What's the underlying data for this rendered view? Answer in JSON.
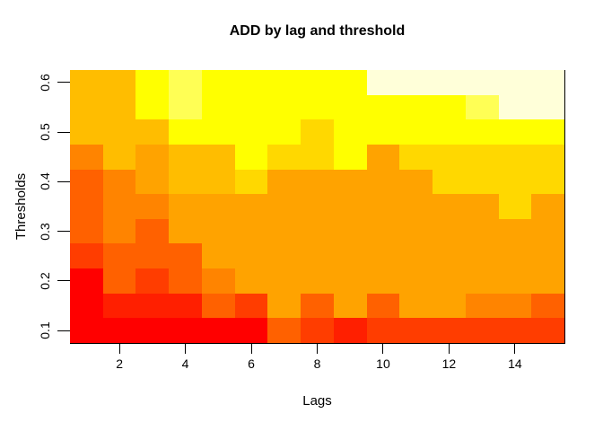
{
  "window": {
    "background": "#FFFFFF"
  },
  "chart_data": {
    "type": "heatmap",
    "title": "ADD by lag and threshold",
    "xlabel": "Lags",
    "ylabel": "Thresholds",
    "x_tick_values": [
      2,
      4,
      6,
      8,
      10,
      12,
      14
    ],
    "x_tick_labels": [
      "2",
      "4",
      "6",
      "8",
      "10",
      "12",
      "14"
    ],
    "y_tick_values": [
      0.1,
      0.2,
      0.3,
      0.4,
      0.5,
      0.6
    ],
    "y_tick_labels": [
      "0.1",
      "0.2",
      "0.3",
      "0.4",
      "0.5",
      "0.6"
    ],
    "x_domain": [
      0.5,
      15.5
    ],
    "y_domain": [
      0.075,
      0.625
    ],
    "lags": [
      1,
      2,
      3,
      4,
      5,
      6,
      7,
      8,
      9,
      10,
      11,
      12,
      13,
      14,
      15
    ],
    "thresholds_top_to_bottom": [
      0.6,
      0.55,
      0.5,
      0.45,
      0.4,
      0.35,
      0.3,
      0.25,
      0.2,
      0.15,
      0.1
    ],
    "grid_on": false,
    "legend": "none",
    "axis_color": "#000000",
    "border_sides": [
      "right",
      "bottom"
    ],
    "palette": {
      "c0": "#FF0000",
      "c1": "#FF1F00",
      "c2": "#FF3D00",
      "c3": "#FF6100",
      "c4": "#FF8400",
      "c5": "#FFA300",
      "c6": "#FFBD00",
      "c7": "#FFD800",
      "c9": "#FFFF00",
      "c10": "#FFFF55",
      "c12": "#FFFFD9"
    },
    "grid_rows_top_to_bottom": [
      [
        "c6",
        "c6",
        "c9",
        "c10",
        "c9",
        "c9",
        "c9",
        "c9",
        "c9",
        "c12",
        "c12",
        "c12",
        "c12",
        "c12",
        "c12"
      ],
      [
        "c6",
        "c6",
        "c9",
        "c10",
        "c9",
        "c9",
        "c9",
        "c9",
        "c9",
        "c9",
        "c9",
        "c9",
        "c10",
        "c12",
        "c12"
      ],
      [
        "c6",
        "c6",
        "c6",
        "c9",
        "c9",
        "c9",
        "c9",
        "c7",
        "c9",
        "c9",
        "c9",
        "c9",
        "c9",
        "c9",
        "c9"
      ],
      [
        "c4",
        "c6",
        "c5",
        "c6",
        "c6",
        "c9",
        "c7",
        "c7",
        "c9",
        "c5",
        "c7",
        "c7",
        "c7",
        "c7",
        "c7"
      ],
      [
        "c3",
        "c4",
        "c5",
        "c6",
        "c6",
        "c7",
        "c5",
        "c5",
        "c5",
        "c5",
        "c5",
        "c7",
        "c7",
        "c7",
        "c7"
      ],
      [
        "c3",
        "c4",
        "c4",
        "c5",
        "c5",
        "c5",
        "c5",
        "c5",
        "c5",
        "c5",
        "c5",
        "c5",
        "c5",
        "c7",
        "c5"
      ],
      [
        "c3",
        "c4",
        "c3",
        "c5",
        "c5",
        "c5",
        "c5",
        "c5",
        "c5",
        "c5",
        "c5",
        "c5",
        "c5",
        "c5",
        "c5"
      ],
      [
        "c2",
        "c3",
        "c3",
        "c3",
        "c5",
        "c5",
        "c5",
        "c5",
        "c5",
        "c5",
        "c5",
        "c5",
        "c5",
        "c5",
        "c5"
      ],
      [
        "c0",
        "c3",
        "c2",
        "c3",
        "c4",
        "c5",
        "c5",
        "c5",
        "c5",
        "c5",
        "c5",
        "c5",
        "c5",
        "c5",
        "c5"
      ],
      [
        "c0",
        "c1",
        "c1",
        "c1",
        "c3",
        "c2",
        "c5",
        "c3",
        "c5",
        "c3",
        "c5",
        "c5",
        "c4",
        "c4",
        "c3"
      ],
      [
        "c0",
        "c0",
        "c0",
        "c0",
        "c0",
        "c0",
        "c3",
        "c2",
        "c1",
        "c2",
        "c2",
        "c2",
        "c2",
        "c2",
        "c2"
      ]
    ]
  }
}
